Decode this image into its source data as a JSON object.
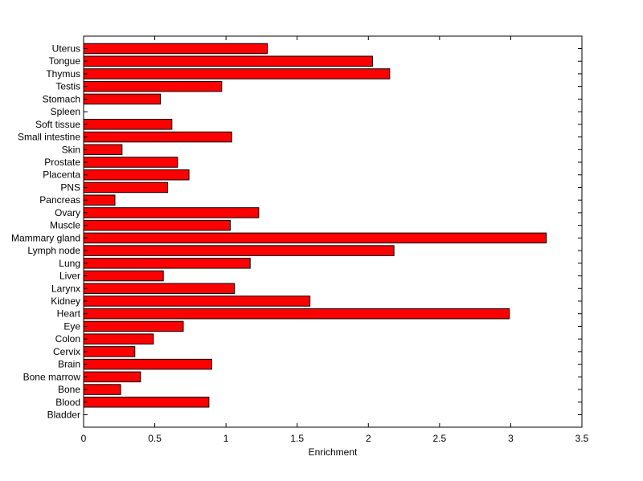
{
  "chart_data": {
    "type": "bar",
    "orientation": "horizontal",
    "xlabel": "Enrichment",
    "ylabel": "",
    "title": "",
    "xlim": [
      0,
      3.5
    ],
    "xticks": [
      "0",
      "0.5",
      "1",
      "1.5",
      "2",
      "2.5",
      "3",
      "3.5"
    ],
    "grid": false,
    "bar_color": "#ff0000",
    "bar_edge_color": "#000000",
    "categories": [
      "Bladder",
      "Blood",
      "Bone",
      "Bone marrow",
      "Brain",
      "Cervix",
      "Colon",
      "Eye",
      "Heart",
      "Kidney",
      "Larynx",
      "Liver",
      "Lung",
      "Lymph node",
      "Mammary gland",
      "Muscle",
      "Ovary",
      "Pancreas",
      "PNS",
      "Placenta",
      "Prostate",
      "Skin",
      "Small intestine",
      "Soft tissue",
      "Spleen",
      "Stomach",
      "Testis",
      "Thymus",
      "Tongue",
      "Uterus"
    ],
    "values": [
      0,
      0.88,
      0.26,
      0.4,
      0.9,
      0.36,
      0.49,
      0.7,
      2.99,
      1.59,
      1.06,
      0.56,
      1.17,
      2.18,
      3.25,
      1.03,
      1.23,
      0.22,
      0.59,
      0.74,
      0.66,
      0.27,
      1.04,
      0.62,
      0,
      0.54,
      0.97,
      2.15,
      2.03,
      1.29
    ]
  }
}
